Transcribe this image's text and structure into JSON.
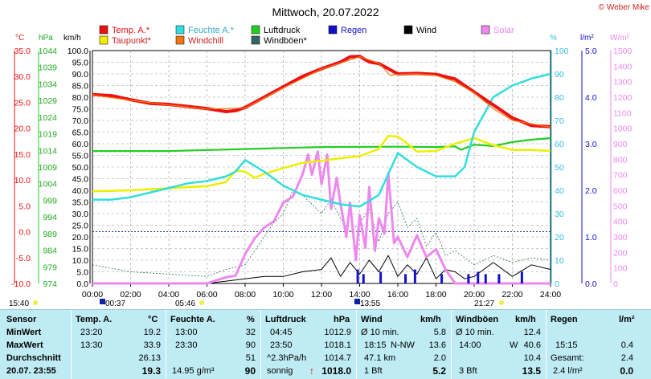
{
  "title": "Mittwoch, 20.07.2022",
  "copyright": "© Weber Mike",
  "axis_units": {
    "temp": "°C",
    "pressure": "hPa",
    "wind": "km/h",
    "humidity": "%",
    "rain": "l/m²",
    "solar": "W/m²"
  },
  "legend": [
    {
      "label": "Temp. A.*",
      "color": "#ee1111"
    },
    {
      "label": "Feuchte A.*",
      "color": "#33dddd"
    },
    {
      "label": "Luftdruck",
      "color": "#22cc22"
    },
    {
      "label": "Regen",
      "color": "#1111cc"
    },
    {
      "label": "Wind",
      "color": "#000000"
    },
    {
      "label": "Solar",
      "color": "#ee88ee"
    },
    {
      "label": "Taupunkt*",
      "color": "#eeee00"
    },
    {
      "label": "Windchill",
      "color": "#ee7711"
    },
    {
      "label": "Windböen*",
      "color": "#336666"
    }
  ],
  "time_markers": [
    {
      "label": "15:40"
    },
    {
      "label": "00:37"
    },
    {
      "label": "05:46"
    },
    {
      "label": "13:55"
    },
    {
      "label": "21:27"
    }
  ],
  "chart_data": {
    "type": "line",
    "title": "Mittwoch, 20.07.2022",
    "x_ticks": [
      "00:00",
      "02:00",
      "04:00",
      "06:00",
      "08:00",
      "10:00",
      "12:00",
      "14:00",
      "16:00",
      "18:00",
      "20:00",
      "22:00",
      "24:00"
    ],
    "axes": {
      "temp_c": {
        "ticks": [
          "35.0",
          "30.0",
          "25.0",
          "20.0",
          "15.0",
          "10.0",
          "5.0",
          "0.0",
          "-5.0",
          "-10.0"
        ],
        "range": [
          -10,
          35
        ]
      },
      "pressure_hpa": {
        "ticks": [
          "1044",
          "1039",
          "1034",
          "1029",
          "1024",
          "1019",
          "1014",
          "1009",
          "1004",
          "999",
          "994",
          "989",
          "984",
          "979",
          "974"
        ],
        "range": [
          974,
          1044
        ]
      },
      "wind_kmh": {
        "ticks": [
          "100.0",
          "95.0",
          "90.0",
          "85.0",
          "80.0",
          "75.0",
          "70.0",
          "65.0",
          "60.0",
          "55.0",
          "50.0",
          "45.0",
          "40.0",
          "35.0",
          "30.0",
          "25.0",
          "20.0",
          "15.0",
          "10.0",
          "5.0",
          "0.0"
        ],
        "range": [
          0,
          100
        ]
      },
      "humidity_pct": {
        "ticks": [
          "100",
          "90",
          "80",
          "70",
          "60",
          "50",
          "40",
          "30",
          "20",
          "10",
          "0"
        ],
        "range": [
          0,
          100
        ]
      },
      "rain_lm2": {
        "ticks": [
          "5.0",
          "4.0",
          "3.0",
          "2.0",
          "1.0",
          "0.0"
        ],
        "range": [
          0,
          5
        ]
      },
      "solar_wm2": {
        "ticks": [
          "1500",
          "1400",
          "1300",
          "1200",
          "1100",
          "1000",
          "900",
          "800",
          "700",
          "600",
          "500",
          "400",
          "300",
          "200",
          "100",
          "0"
        ],
        "range": [
          0,
          1500
        ]
      }
    },
    "series": [
      {
        "name": "Temp. A.*",
        "axis": "temp",
        "color": "#ee1111",
        "x": [
          0,
          1,
          2,
          3,
          4,
          5,
          6,
          7,
          7.5,
          8,
          9,
          10,
          11,
          12,
          13,
          13.5,
          14,
          14.5,
          15,
          16,
          17,
          18,
          19,
          20,
          21,
          22,
          23,
          24
        ],
        "y": [
          26.5,
          26.3,
          25.5,
          24.8,
          24.6,
          24.2,
          23.8,
          23.2,
          23.4,
          24.0,
          26.0,
          28.0,
          30.0,
          31.5,
          32.8,
          33.8,
          33.9,
          32.8,
          32.5,
          30.5,
          30.6,
          30.4,
          29.5,
          27.0,
          24.5,
          22.0,
          20.5,
          20.3
        ]
      },
      {
        "name": "Windchill",
        "axis": "temp",
        "color": "#ee7711",
        "x": [
          0,
          2,
          4,
          6,
          8,
          10,
          12,
          14,
          15,
          15.6,
          16,
          17,
          18,
          19,
          20,
          21,
          22,
          24
        ],
        "y": [
          26.4,
          25.4,
          24.5,
          23.7,
          23.9,
          27.8,
          31.4,
          33.8,
          32.6,
          30.2,
          30.4,
          30.5,
          30.2,
          29.0,
          26.8,
          23.8,
          21.5,
          20.2
        ]
      },
      {
        "name": "Feuchte A.*",
        "axis": "hum",
        "color": "#33dddd",
        "x": [
          0,
          1,
          2,
          3,
          4,
          5,
          6,
          7,
          7.5,
          8,
          9,
          10,
          11,
          12,
          13,
          14,
          15,
          15.5,
          16,
          17,
          18,
          19,
          19.5,
          20,
          21,
          22,
          23,
          24
        ],
        "y": [
          36,
          36,
          37,
          39,
          41,
          43,
          44,
          46,
          48,
          53,
          48,
          42,
          38,
          36,
          34,
          33,
          38,
          47,
          56,
          50,
          46,
          46,
          50,
          65,
          80,
          85,
          88,
          90
        ]
      },
      {
        "name": "Taupunkt*",
        "axis": "temp",
        "color": "#eeee00",
        "x": [
          0,
          2,
          4,
          6,
          7,
          7.5,
          8,
          8.5,
          9,
          10,
          11,
          12,
          13,
          14,
          15,
          15.5,
          16,
          16.5,
          17,
          18,
          19,
          20,
          21,
          22,
          23,
          24
        ],
        "y": [
          7.8,
          8.0,
          8.4,
          8.8,
          9.6,
          11.8,
          11.6,
          10.4,
          11.2,
          12.3,
          13.3,
          13.7,
          14.2,
          14.6,
          16.0,
          18.5,
          18.4,
          17.0,
          15.5,
          15.6,
          17.0,
          18.1,
          16.7,
          15.8,
          15.8,
          15.6
        ]
      },
      {
        "name": "Luftdruck",
        "axis": "hpa",
        "color": "#22cc22",
        "x": [
          0,
          4,
          8,
          12,
          16,
          18,
          19,
          19.3,
          20,
          21,
          22,
          23,
          24
        ],
        "y": [
          1013.8,
          1013.8,
          1014.4,
          1015.0,
          1015.1,
          1015.0,
          1015.2,
          1014.2,
          1015.7,
          1015.3,
          1016.5,
          1017.2,
          1017.7
        ]
      },
      {
        "name": "Solar",
        "axis": "solar",
        "color": "#ee88ee",
        "x": [
          0,
          5,
          6,
          6.5,
          7,
          7.5,
          8,
          8.5,
          9,
          9.5,
          10,
          10.5,
          11,
          11.3,
          11.5,
          11.8,
          12,
          12.3,
          12.5,
          12.8,
          13,
          13.3,
          13.5,
          13.8,
          14,
          14.3,
          14.5,
          14.8,
          15,
          15.3,
          15.5,
          15.8,
          16,
          16.5,
          17,
          17.5,
          18,
          18.5,
          19,
          20,
          24
        ],
        "y": [
          0,
          0,
          0,
          20,
          40,
          50,
          190,
          290,
          360,
          400,
          520,
          560,
          700,
          830,
          700,
          850,
          640,
          830,
          480,
          680,
          510,
          300,
          520,
          150,
          440,
          230,
          620,
          210,
          420,
          320,
          710,
          260,
          300,
          170,
          310,
          170,
          220,
          90,
          0,
          0,
          0
        ]
      },
      {
        "name": "Wind",
        "axis": "kmh",
        "color": "#000000",
        "x": [
          0,
          6,
          7,
          8,
          9,
          10,
          11,
          12,
          12.5,
          13,
          13.5,
          14,
          14.5,
          15,
          15.5,
          16,
          16.5,
          17,
          17.5,
          18,
          18.5,
          19,
          19.5,
          20,
          21,
          22,
          23,
          24
        ],
        "y": [
          0,
          0,
          1,
          2,
          3,
          3,
          5,
          6,
          11,
          3,
          9,
          4,
          10,
          5,
          12,
          3,
          8,
          4,
          11,
          2,
          6,
          5,
          2,
          3,
          9,
          3,
          8,
          6
        ]
      },
      {
        "name": "Windböen*",
        "axis": "kmh",
        "color": "#336666",
        "x": [
          0,
          2,
          4,
          6,
          7,
          8,
          8.5,
          9,
          9.5,
          10,
          10.5,
          11,
          11.5,
          12,
          12.5,
          13,
          13.5,
          14,
          14.5,
          15,
          15.5,
          16,
          16.5,
          17,
          17.5,
          18,
          18.5,
          19,
          20,
          21,
          22,
          23,
          24
        ],
        "y": [
          8,
          5,
          4,
          3,
          6,
          8,
          14,
          20,
          26,
          30,
          40,
          38,
          34,
          30,
          36,
          28,
          22,
          26,
          32,
          18,
          30,
          35,
          24,
          28,
          16,
          22,
          12,
          14,
          8,
          12,
          9,
          11,
          10
        ]
      },
      {
        "name": "Regen",
        "axis": "rain",
        "color": "#1111cc",
        "x": [
          13.9,
          14.2,
          15.1,
          16.4,
          16.9,
          18.3,
          19.7,
          20.2,
          20.6,
          21.3,
          22.5
        ],
        "y": [
          0.3,
          0.2,
          0.25,
          0.2,
          0.3,
          0.2,
          0.2,
          0.25,
          0.2,
          0.2,
          0.25
        ]
      }
    ]
  },
  "stats": {
    "headers": {
      "sensor": "Sensor",
      "temp": "Temp. A.",
      "temp_unit": "°C",
      "hum": "Feuchte A.",
      "hum_unit": "%",
      "press": "Luftdruck",
      "press_unit": "hPa",
      "wind": "Wind",
      "wind_unit": "km/h",
      "gust": "Windböen",
      "gust_unit": "km/h",
      "rain": "Regen",
      "rain_unit": "l/m²"
    },
    "min": {
      "label": "MinWert",
      "temp_time": "23:20",
      "temp_val": "19.2",
      "hum_time": "13:00",
      "hum_val": "32",
      "press_time": "04:45",
      "press_val": "1012.9",
      "wind_label": "Ø 10 min.",
      "wind_val": "5.8",
      "gust_label": "Ø 10 min.",
      "gust_val": "12.4",
      "rain_label": "",
      "rain_val": ""
    },
    "max": {
      "label": "MaxWert",
      "temp_time": "13:30",
      "temp_val": "33.9",
      "hum_time": "23:30",
      "hum_val": "90",
      "press_time": "23:50",
      "press_val": "1018.1",
      "wind_time": "18:15",
      "wind_dir": "N-NW",
      "wind_val": "13.6",
      "gust_time": "14:00",
      "gust_dir": "W",
      "gust_val": "40.6",
      "rain_time": "15:15",
      "rain_val": "0.4"
    },
    "avg": {
      "label": "Durchschnitt",
      "temp_val": "26.13",
      "hum_val": "51",
      "press_trend": "^2.3hPa/h",
      "press_val": "1014.7",
      "wind_dist": "47.1 km",
      "wind_val": "2.0",
      "gust_val": "10.4",
      "rain_label": "Gesamt:",
      "rain_val": "2.4"
    },
    "current": {
      "label": "20.07. 23:55",
      "temp_val": "19.3",
      "hum_abs": "14.95 g/m³",
      "hum_val": "90",
      "weather": "sonnig",
      "press_arrow": "↑",
      "press_val": "1018.0",
      "wind_bft": "1 Bft",
      "wind_val": "5.2",
      "gust_bft": "3 Bft",
      "gust_val": "13.5",
      "rain_rate": "2.4 l/m²",
      "rain_val": "0.0"
    }
  }
}
